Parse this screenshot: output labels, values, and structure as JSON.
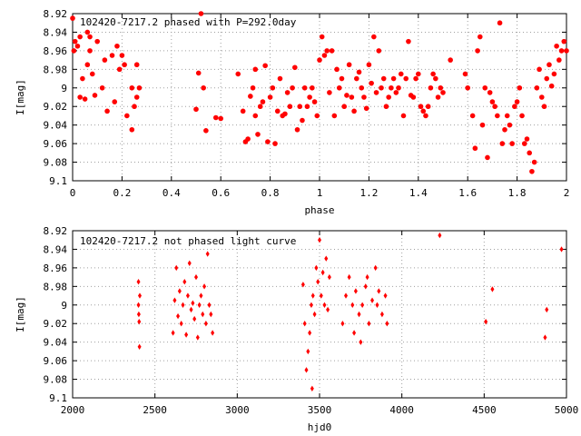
{
  "chart_data": [
    {
      "type": "scatter",
      "title": "102420-7217.2 phased with P=292.0day",
      "xlabel": "phase",
      "ylabel": "I[mag]",
      "xlim": [
        0,
        2
      ],
      "ylim": [
        9.1,
        8.92
      ],
      "y_inverted": true,
      "grid": true,
      "marker": "filled-circle",
      "color": "#ff0000",
      "xticks": [
        "0",
        "0.2",
        "0.4",
        "0.6",
        "0.8",
        "1",
        "1.2",
        "1.4",
        "1.6",
        "1.8",
        "2"
      ],
      "yticks": [
        "8.92",
        "8.94",
        "8.96",
        "8.98",
        "9",
        "9.02",
        "9.04",
        "9.06",
        "9.08",
        "9.1"
      ],
      "series": [
        {
          "points": [
            [
              0.0,
              8.925
            ],
            [
              0.005,
              8.96
            ],
            [
              0.01,
              8.95
            ],
            [
              0.02,
              8.955
            ],
            [
              0.03,
              8.945
            ],
            [
              0.03,
              9.01
            ],
            [
              0.04,
              8.99
            ],
            [
              0.05,
              9.012
            ],
            [
              0.06,
              8.975
            ],
            [
              0.06,
              8.94
            ],
            [
              0.07,
              8.945
            ],
            [
              0.07,
              8.96
            ],
            [
              0.08,
              8.985
            ],
            [
              0.09,
              9.008
            ],
            [
              0.1,
              8.95
            ],
            [
              0.12,
              9.0
            ],
            [
              0.13,
              8.97
            ],
            [
              0.14,
              9.025
            ],
            [
              0.16,
              8.965
            ],
            [
              0.17,
              9.015
            ],
            [
              0.18,
              8.955
            ],
            [
              0.19,
              8.98
            ],
            [
              0.2,
              8.965
            ],
            [
              0.21,
              8.975
            ],
            [
              0.22,
              9.03
            ],
            [
              0.24,
              9.0
            ],
            [
              0.24,
              9.045
            ],
            [
              0.25,
              9.02
            ],
            [
              0.26,
              9.01
            ],
            [
              0.26,
              8.975
            ],
            [
              0.27,
              9.0
            ],
            [
              0.5,
              9.023
            ],
            [
              0.51,
              8.984
            ],
            [
              0.52,
              8.92
            ],
            [
              0.53,
              9.0
            ],
            [
              0.54,
              9.046
            ],
            [
              0.58,
              9.032
            ],
            [
              0.6,
              9.033
            ],
            [
              0.67,
              8.985
            ],
            [
              0.69,
              9.025
            ],
            [
              0.7,
              9.058
            ],
            [
              0.71,
              9.055
            ],
            [
              0.72,
              9.009
            ],
            [
              0.73,
              9.0
            ],
            [
              0.74,
              8.98
            ],
            [
              0.74,
              9.03
            ],
            [
              0.75,
              9.05
            ],
            [
              0.76,
              9.02
            ],
            [
              0.77,
              9.015
            ],
            [
              0.78,
              8.976
            ],
            [
              0.79,
              9.058
            ],
            [
              0.8,
              9.01
            ],
            [
              0.81,
              9.0
            ],
            [
              0.82,
              9.06
            ],
            [
              0.83,
              9.025
            ],
            [
              0.84,
              8.99
            ],
            [
              0.85,
              9.03
            ],
            [
              0.86,
              9.028
            ],
            [
              0.87,
              9.005
            ],
            [
              0.88,
              9.02
            ],
            [
              0.89,
              9.0
            ],
            [
              0.9,
              8.978
            ],
            [
              0.91,
              9.045
            ],
            [
              0.92,
              9.02
            ],
            [
              0.93,
              9.035
            ],
            [
              0.94,
              9.0
            ],
            [
              0.95,
              9.02
            ],
            [
              0.96,
              9.01
            ],
            [
              0.97,
              9.0
            ],
            [
              0.98,
              9.015
            ],
            [
              0.99,
              9.03
            ],
            [
              1.0,
              8.97
            ],
            [
              1.01,
              8.945
            ],
            [
              1.02,
              8.965
            ],
            [
              1.03,
              8.96
            ],
            [
              1.04,
              9.005
            ],
            [
              1.05,
              8.96
            ],
            [
              1.06,
              9.03
            ],
            [
              1.07,
              8.98
            ],
            [
              1.08,
              9.0
            ],
            [
              1.09,
              8.99
            ],
            [
              1.1,
              9.02
            ],
            [
              1.11,
              9.008
            ],
            [
              1.12,
              8.975
            ],
            [
              1.13,
              9.01
            ],
            [
              1.14,
              9.025
            ],
            [
              1.15,
              8.99
            ],
            [
              1.16,
              8.983
            ],
            [
              1.17,
              9.0
            ],
            [
              1.18,
              9.01
            ],
            [
              1.19,
              9.022
            ],
            [
              1.2,
              8.975
            ],
            [
              1.21,
              8.995
            ],
            [
              1.22,
              8.945
            ],
            [
              1.23,
              9.005
            ],
            [
              1.24,
              8.96
            ],
            [
              1.25,
              9.0
            ],
            [
              1.26,
              8.99
            ],
            [
              1.27,
              9.02
            ],
            [
              1.28,
              9.01
            ],
            [
              1.29,
              9.0
            ],
            [
              1.3,
              8.99
            ],
            [
              1.31,
              9.005
            ],
            [
              1.32,
              9.0
            ],
            [
              1.33,
              8.985
            ],
            [
              1.34,
              9.03
            ],
            [
              1.35,
              8.99
            ],
            [
              1.36,
              8.95
            ],
            [
              1.37,
              9.008
            ],
            [
              1.38,
              9.01
            ],
            [
              1.39,
              8.99
            ],
            [
              1.4,
              8.985
            ],
            [
              1.41,
              9.02
            ],
            [
              1.42,
              9.025
            ],
            [
              1.43,
              9.03
            ],
            [
              1.44,
              9.02
            ],
            [
              1.45,
              9.0
            ],
            [
              1.46,
              8.985
            ],
            [
              1.47,
              8.99
            ],
            [
              1.48,
              9.01
            ],
            [
              1.49,
              9.0
            ],
            [
              1.5,
              9.005
            ],
            [
              1.53,
              8.97
            ],
            [
              1.59,
              8.985
            ],
            [
              1.6,
              9.0
            ],
            [
              1.62,
              9.03
            ],
            [
              1.63,
              9.065
            ],
            [
              1.64,
              8.96
            ],
            [
              1.65,
              8.945
            ],
            [
              1.66,
              9.04
            ],
            [
              1.67,
              9.0
            ],
            [
              1.68,
              9.075
            ],
            [
              1.69,
              9.005
            ],
            [
              1.7,
              9.015
            ],
            [
              1.71,
              9.02
            ],
            [
              1.72,
              9.03
            ],
            [
              1.73,
              8.93
            ],
            [
              1.74,
              9.06
            ],
            [
              1.75,
              9.045
            ],
            [
              1.76,
              9.03
            ],
            [
              1.77,
              9.04
            ],
            [
              1.78,
              9.06
            ],
            [
              1.79,
              9.02
            ],
            [
              1.8,
              9.015
            ],
            [
              1.81,
              9.0
            ],
            [
              1.82,
              9.03
            ],
            [
              1.83,
              9.06
            ],
            [
              1.84,
              9.055
            ],
            [
              1.85,
              9.07
            ],
            [
              1.86,
              9.09
            ],
            [
              1.87,
              9.08
            ],
            [
              1.88,
              9.0
            ],
            [
              1.89,
              8.98
            ],
            [
              1.9,
              9.01
            ],
            [
              1.91,
              9.02
            ],
            [
              1.92,
              8.99
            ],
            [
              1.93,
              8.975
            ],
            [
              1.94,
              8.998
            ],
            [
              1.95,
              8.985
            ],
            [
              1.96,
              8.955
            ],
            [
              1.97,
              8.97
            ],
            [
              1.98,
              8.96
            ],
            [
              1.99,
              8.95
            ],
            [
              2.0,
              8.96
            ]
          ]
        }
      ]
    },
    {
      "type": "scatter",
      "title": "102420-7217.2 not phased light curve",
      "xlabel": "hjd0",
      "ylabel": "I[mag]",
      "xlim": [
        2000,
        5000
      ],
      "ylim": [
        9.1,
        8.92
      ],
      "y_inverted": true,
      "grid": true,
      "marker": "diamond",
      "color": "#ff0000",
      "xticks": [
        "2000",
        "2500",
        "3000",
        "3500",
        "4000",
        "4500",
        "5000"
      ],
      "yticks": [
        "8.92",
        "8.94",
        "8.96",
        "8.98",
        "9",
        "9.02",
        "9.04",
        "9.06",
        "9.08",
        "9.1"
      ],
      "series": [
        {
          "points": [
            [
              2400,
              8.975
            ],
            [
              2400,
              9.0
            ],
            [
              2402,
              9.01
            ],
            [
              2404,
              9.018
            ],
            [
              2406,
              9.045
            ],
            [
              2408,
              8.99
            ],
            [
              2610,
              9.03
            ],
            [
              2620,
              8.995
            ],
            [
              2630,
              8.96
            ],
            [
              2640,
              9.012
            ],
            [
              2650,
              8.985
            ],
            [
              2660,
              9.02
            ],
            [
              2670,
              9.0
            ],
            [
              2680,
              8.975
            ],
            [
              2690,
              9.032
            ],
            [
              2700,
              8.99
            ],
            [
              2710,
              8.955
            ],
            [
              2720,
              9.005
            ],
            [
              2730,
              8.998
            ],
            [
              2740,
              9.015
            ],
            [
              2750,
              8.97
            ],
            [
              2760,
              9.035
            ],
            [
              2770,
              9.0
            ],
            [
              2780,
              8.99
            ],
            [
              2790,
              9.01
            ],
            [
              2800,
              8.98
            ],
            [
              2810,
              9.02
            ],
            [
              2820,
              8.945
            ],
            [
              2830,
              9.0
            ],
            [
              2840,
              9.01
            ],
            [
              2850,
              9.03
            ],
            [
              3400,
              8.978
            ],
            [
              3410,
              9.02
            ],
            [
              3420,
              9.07
            ],
            [
              3430,
              9.05
            ],
            [
              3440,
              9.03
            ],
            [
              3450,
              9.0
            ],
            [
              3455,
              9.09
            ],
            [
              3460,
              8.99
            ],
            [
              3470,
              9.01
            ],
            [
              3480,
              8.96
            ],
            [
              3490,
              8.975
            ],
            [
              3500,
              8.93
            ],
            [
              3510,
              8.99
            ],
            [
              3520,
              8.965
            ],
            [
              3530,
              9.0
            ],
            [
              3540,
              8.95
            ],
            [
              3550,
              9.005
            ],
            [
              3560,
              8.97
            ],
            [
              3640,
              9.02
            ],
            [
              3660,
              8.99
            ],
            [
              3680,
              8.97
            ],
            [
              3700,
              9.0
            ],
            [
              3710,
              9.03
            ],
            [
              3720,
              8.985
            ],
            [
              3740,
              9.01
            ],
            [
              3750,
              9.04
            ],
            [
              3760,
              9.0
            ],
            [
              3780,
              8.98
            ],
            [
              3790,
              8.97
            ],
            [
              3800,
              9.02
            ],
            [
              3820,
              8.995
            ],
            [
              3840,
              8.96
            ],
            [
              3850,
              9.0
            ],
            [
              3860,
              8.985
            ],
            [
              3880,
              9.01
            ],
            [
              3900,
              8.99
            ],
            [
              3910,
              9.02
            ],
            [
              4230,
              8.925
            ],
            [
              4510,
              9.018
            ],
            [
              4550,
              8.983
            ],
            [
              4870,
              9.035
            ],
            [
              4880,
              9.005
            ],
            [
              4970,
              8.94
            ]
          ]
        }
      ]
    }
  ]
}
